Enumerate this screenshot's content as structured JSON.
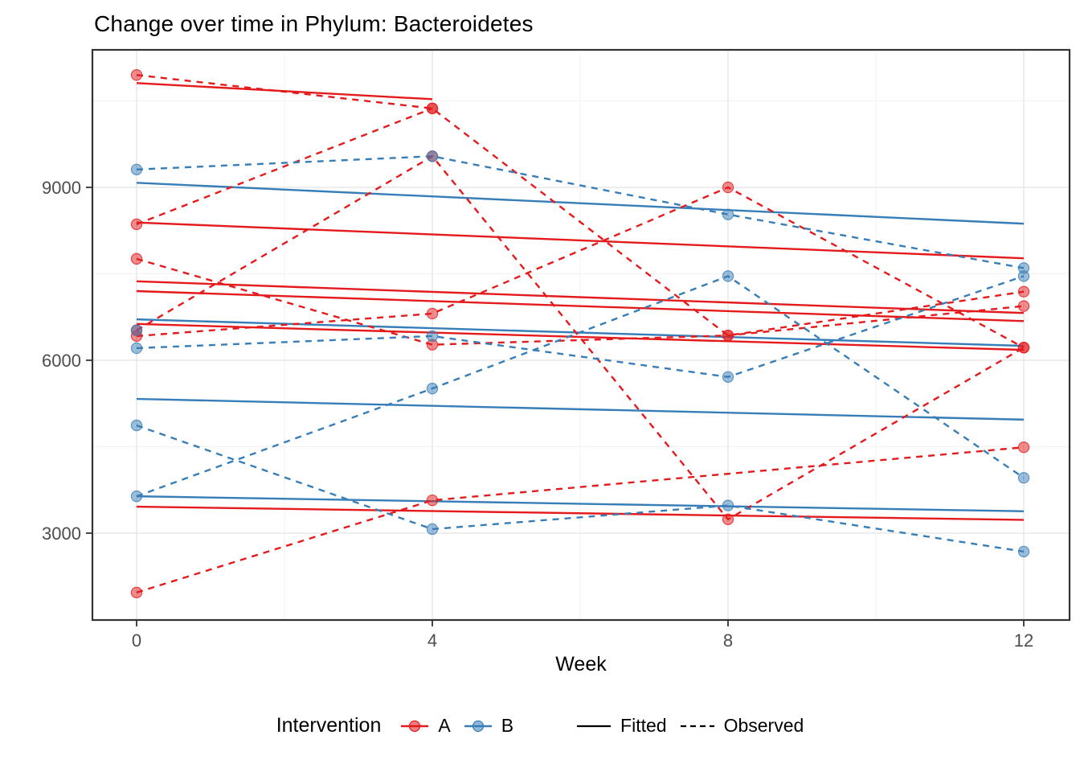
{
  "title": "Change over time in Phylum: Bacteroidetes",
  "x_axis": {
    "label": "Week",
    "ticks": [
      "0",
      "4",
      "8",
      "12"
    ]
  },
  "y_axis": {
    "ticks": [
      "3000",
      "6000",
      "9000"
    ]
  },
  "legend": {
    "title": "Intervention",
    "groups": [
      {
        "label": "A",
        "color": "#E41A1C"
      },
      {
        "label": "B",
        "color": "#377EB8"
      }
    ],
    "linetypes": [
      {
        "label": "Fitted",
        "style": "solid"
      },
      {
        "label": "Observed",
        "style": "dashed"
      }
    ]
  },
  "chart_data": {
    "type": "line",
    "title": "Change over time in Phylum: Bacteroidetes",
    "xlabel": "Week",
    "ylabel": "",
    "x_ticks": [
      0,
      4,
      8,
      12
    ],
    "x_minor_ticks": [
      2,
      6,
      10
    ],
    "y_ticks": [
      3000,
      6000,
      9000
    ],
    "y_minor_ticks": [
      4500,
      7500,
      10500
    ],
    "x_range": [
      -0.6,
      12.62
    ],
    "y_range": [
      1490,
      11390
    ],
    "grid": true,
    "legend_position": "bottom",
    "groups": {
      "A": "#E41A1C",
      "B": "#377EB8"
    },
    "observed_series": [
      {
        "group": "A",
        "points": [
          [
            0,
            10950
          ],
          [
            4,
            10370
          ],
          [
            8,
            6430
          ],
          [
            12,
            7190
          ]
        ]
      },
      {
        "group": "A",
        "points": [
          [
            0,
            8360
          ],
          [
            4,
            10370
          ]
        ]
      },
      {
        "group": "A",
        "points": [
          [
            0,
            7760
          ],
          [
            4,
            6270
          ],
          [
            8,
            6430
          ],
          [
            12,
            6940
          ]
        ]
      },
      {
        "group": "A",
        "points": [
          [
            0,
            6420
          ],
          [
            4,
            6810
          ],
          [
            8,
            9000
          ],
          [
            12,
            6220
          ]
        ]
      },
      {
        "group": "A",
        "points": [
          [
            0,
            6520
          ],
          [
            4,
            9540
          ],
          [
            8,
            3240
          ],
          [
            12,
            6220
          ]
        ]
      },
      {
        "group": "A",
        "points": [
          [
            0,
            1970
          ],
          [
            4,
            3570
          ],
          [
            12,
            4490
          ]
        ]
      },
      {
        "group": "B",
        "points": [
          [
            0,
            9310
          ],
          [
            4,
            9540
          ],
          [
            8,
            8530
          ],
          [
            12,
            7600
          ]
        ]
      },
      {
        "group": "B",
        "points": [
          [
            0,
            3640
          ],
          [
            4,
            5510
          ],
          [
            8,
            7460
          ],
          [
            12,
            3960
          ]
        ]
      },
      {
        "group": "B",
        "points": [
          [
            0,
            4870
          ],
          [
            4,
            3070
          ],
          [
            8,
            3480
          ],
          [
            12,
            2680
          ]
        ]
      },
      {
        "group": "B",
        "points": [
          [
            0,
            6210
          ],
          [
            4,
            6420
          ],
          [
            8,
            5710
          ],
          [
            12,
            7460
          ]
        ]
      },
      {
        "group": "B",
        "points": [
          [
            0,
            6520
          ]
        ]
      }
    ],
    "fitted_series": [
      {
        "group": "A",
        "x": [
          0,
          4
        ],
        "y": [
          10810,
          10530
        ]
      },
      {
        "group": "A",
        "x": [
          0,
          12
        ],
        "y": [
          8390,
          7770
        ]
      },
      {
        "group": "A",
        "x": [
          0,
          12
        ],
        "y": [
          7370,
          6820
        ]
      },
      {
        "group": "A",
        "x": [
          0,
          12
        ],
        "y": [
          7200,
          6680
        ]
      },
      {
        "group": "A",
        "x": [
          0,
          12
        ],
        "y": [
          6630,
          6180
        ]
      },
      {
        "group": "A",
        "x": [
          0,
          12
        ],
        "y": [
          3460,
          3230
        ]
      },
      {
        "group": "B",
        "x": [
          0,
          12
        ],
        "y": [
          9080,
          8370
        ]
      },
      {
        "group": "B",
        "x": [
          0,
          12
        ],
        "y": [
          6710,
          6250
        ]
      },
      {
        "group": "B",
        "x": [
          0,
          12
        ],
        "y": [
          5330,
          4970
        ]
      },
      {
        "group": "B",
        "x": [
          0,
          12
        ],
        "y": [
          3640,
          3380
        ]
      }
    ]
  }
}
